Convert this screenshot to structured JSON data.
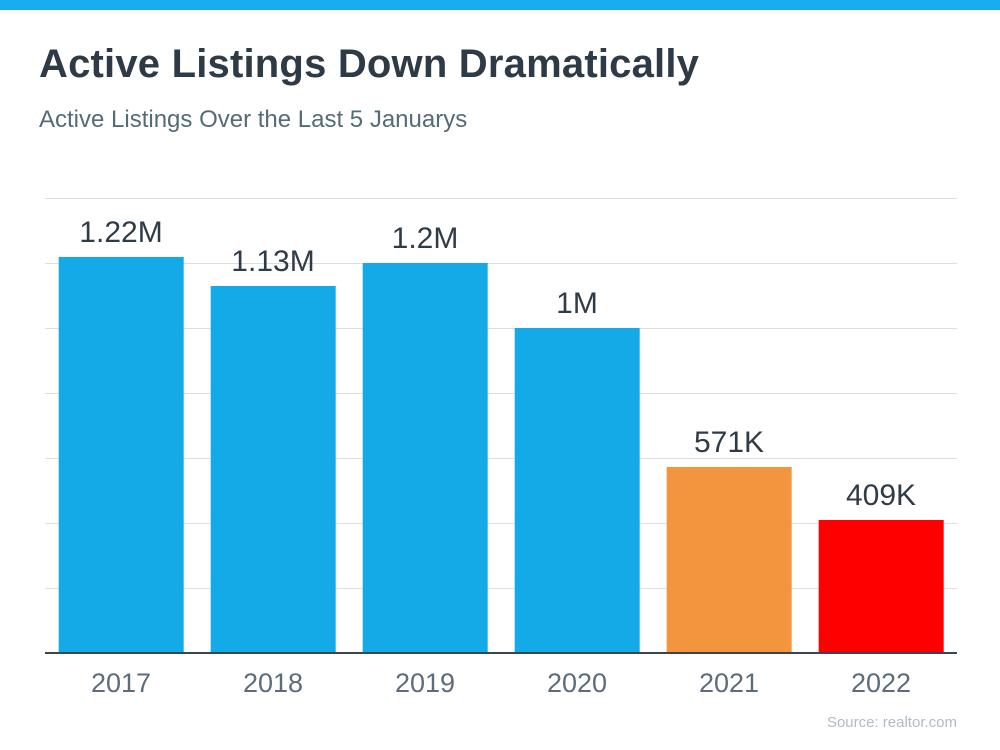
{
  "page": {
    "title": "Active Listings Down Dramatically",
    "subtitle": "Active Listings Over the Last 5 Januarys",
    "source": "Source: realtor.com",
    "accent_bar_color": "#18adec",
    "background_color": "#ffffff",
    "title_color": "#2e3a45",
    "subtitle_color": "#546b78"
  },
  "chart_data": {
    "type": "bar",
    "title": "Active Listings Down Dramatically",
    "subtitle": "Active Listings Over the Last 5 Januarys",
    "categories": [
      "2017",
      "2018",
      "2019",
      "2020",
      "2021",
      "2022"
    ],
    "values": [
      1220000,
      1130000,
      1200000,
      1000000,
      571000,
      409000
    ],
    "value_labels": [
      "1.22M",
      "1.13M",
      "1.2M",
      "1M",
      "571K",
      "409K"
    ],
    "bar_colors": [
      "#14aae8",
      "#14aae8",
      "#14aae8",
      "#14aae8",
      "#f3953e",
      "#fe0000"
    ],
    "xlabel": "",
    "ylabel": "",
    "ylim": [
      0,
      1400000
    ],
    "gridline_step": 200000,
    "grid": "horizontal-only, unlabeled",
    "gridline_color": "#dedede",
    "axis_line_color": "#3a454e",
    "legend": "none",
    "source": "Source: realtor.com"
  }
}
